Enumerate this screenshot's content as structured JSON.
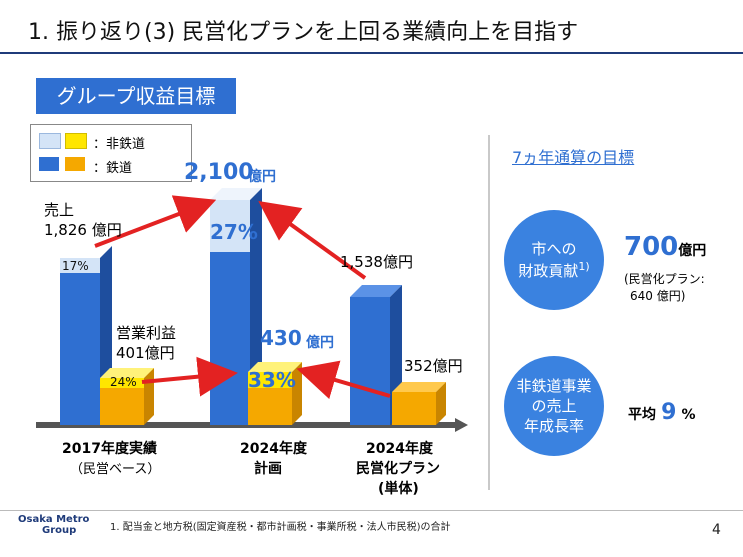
{
  "header": {
    "title": "1. 振り返り(3) 民営化プランを上回る業績向上を目指す"
  },
  "section": {
    "label": "グループ収益目標"
  },
  "legend": {
    "non_rail": "：非鉄道",
    "rail": "：鉄道"
  },
  "chart_data": {
    "type": "bar",
    "categories": [
      "2017年度実績",
      "2024年度 計画",
      "2024年度 民営化プラン"
    ],
    "category_sublabels": [
      "（民営ベース）",
      "",
      "(単体)"
    ],
    "series_names": [
      "鉄道",
      "非鉄道"
    ],
    "metrics": [
      {
        "name": "売上",
        "totals": [
          1826,
          2100,
          1538
        ],
        "non_rail_pct": [
          17,
          27,
          null
        ],
        "labels": [
          "売上\n1,826 億円",
          "2,100 億円",
          "1,538億円"
        ]
      },
      {
        "name": "営業利益",
        "totals": [
          401,
          430,
          352
        ],
        "non_rail_pct": [
          24,
          33,
          null
        ],
        "labels": [
          "営業利益\n401億円",
          "430 億円",
          "352億円"
        ]
      }
    ],
    "colors": {
      "rail_sales": "#2f6fd1",
      "non_rail_sales": "#d4e4f7",
      "rail_profit": "#f5a800",
      "non_rail_profit": "#ffe600"
    }
  },
  "bar_labels": {
    "sales_2017_l1": "売上",
    "sales_2017_l2": "1,826 億円",
    "sales_2024_num": "2,100",
    "sales_2024_unit": "億円",
    "sales_plan": "1,538億円",
    "pct_sales_2017": "17%",
    "pct_sales_2024": "27%",
    "profit_2017_l1": "営業利益",
    "profit_2017_l2": "401億円",
    "profit_2024_num": "430",
    "profit_2024_unit": "億円",
    "profit_plan": "352億円",
    "pct_profit_2017": "24%",
    "pct_profit_2024": "33%"
  },
  "xaxis": {
    "c1_l1": "2017年度実績",
    "c1_l2": "（民営ベース）",
    "c2_l1": "2024年度",
    "c2_l2": "計画",
    "c3_l1": "2024年度",
    "c3_l2": "民営化プラン",
    "c3_l3": "(単体)"
  },
  "right_panel": {
    "title": "7ヵ年通算の目標",
    "circle1_l1": "市への",
    "circle1_l2": "財政貢献",
    "circle1_sup": "1)",
    "value1_num": "700",
    "value1_unit": "億円",
    "value1_note1": "(民営化プラン:",
    "value1_note2": "640 億円)",
    "circle2_l1": "非鉄道事業",
    "circle2_l2": "の売上",
    "circle2_l3": "年成長率",
    "value2_prefix": "平均",
    "value2_num": "9",
    "value2_unit": "%"
  },
  "footer": {
    "footnote": "1.  配当金と地方税(固定資産税・都市計画税・事業所税・法人市民税)の合計",
    "logo_l1": "Osaka Metro",
    "logo_l2": "Group",
    "page": "4"
  }
}
